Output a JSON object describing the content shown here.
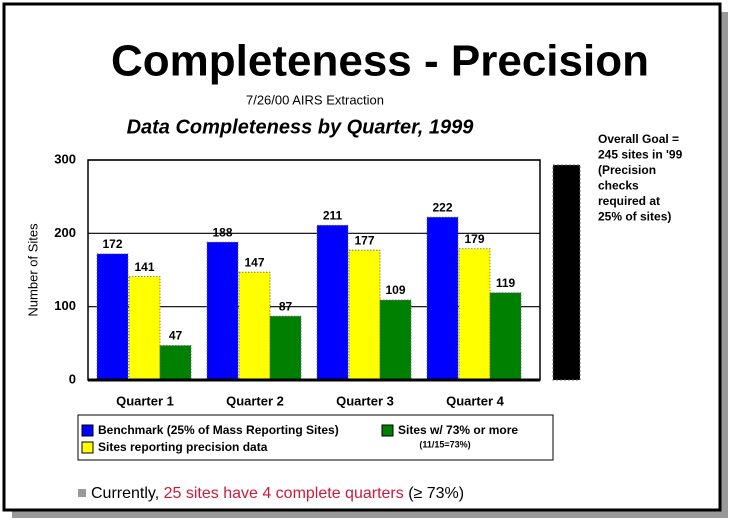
{
  "chart_data": {
    "type": "bar",
    "title": "Completeness - Precision",
    "subtitle": "7/26/00 AIRS Extraction",
    "chart_title": "Data Completeness by Quarter, 1999",
    "y_label": "Number of Sites",
    "categories": [
      "Quarter 1",
      "Quarter 2",
      "Quarter 3",
      "Quarter 4"
    ],
    "series": [
      {
        "name": "Benchmark (25% of Mass Reporting Sites)",
        "color": "#0000ff",
        "values": [
          172,
          188,
          211,
          222
        ]
      },
      {
        "name": "Sites reporting precision data",
        "color": "#ffff00",
        "values": [
          141,
          147,
          177,
          179
        ]
      },
      {
        "name": "Sites w/ 73% or more",
        "color": "#008000",
        "values": [
          47,
          87,
          109,
          119
        ]
      }
    ],
    "legend_note": "(11/15=73%)",
    "ylim": [
      0,
      300
    ],
    "yticks": [
      0,
      100,
      200,
      300
    ],
    "grid": true,
    "goal_text": [
      "Overall Goal =",
      "245 sites in '99",
      "(Precision",
      "checks",
      "required at",
      "25% of sites)"
    ],
    "footnote": [
      "Currently, ",
      "25 sites have 4 complete quarters",
      " (≥ 73%)"
    ]
  }
}
